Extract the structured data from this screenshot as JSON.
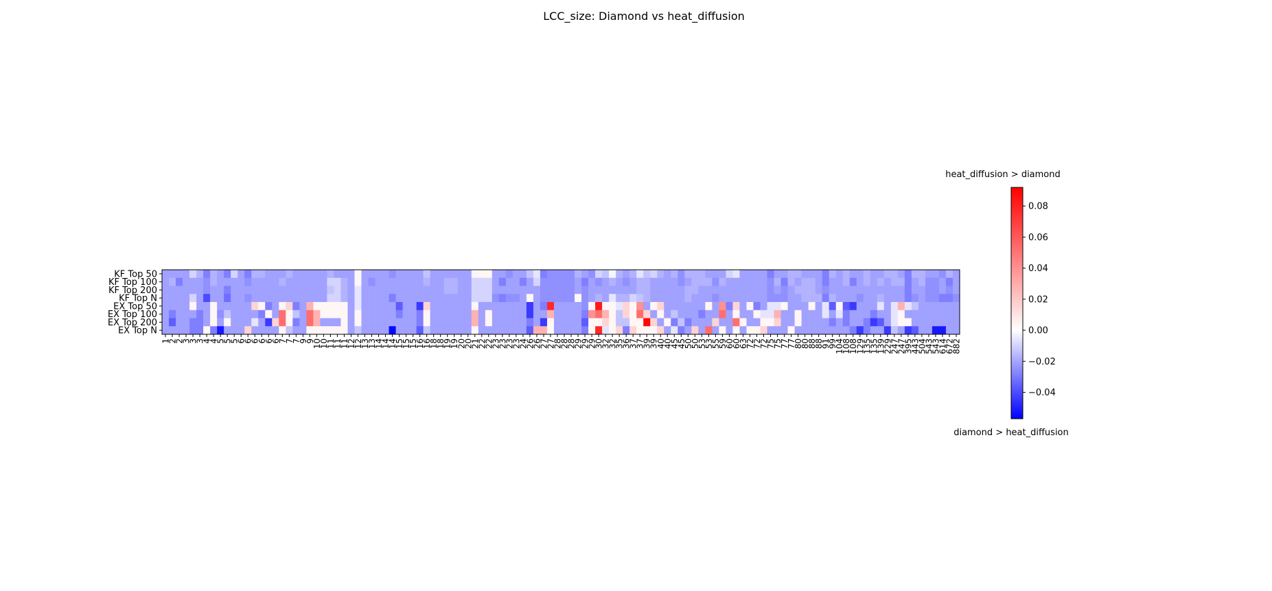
{
  "chart_data": {
    "type": "heatmap",
    "title": "LCC_size: Diamond vs heat_diffusion",
    "rows": [
      "KF Top 50",
      "KF Top 100",
      "KF Top 200",
      "KF Top N",
      "EX Top 50",
      "EX Top 100",
      "EX Top 200",
      "EX Top N"
    ],
    "columns": [
      "1",
      "2",
      "2",
      "3",
      "3",
      "3",
      "4",
      "4",
      "5",
      "5",
      "5",
      "6",
      "6",
      "6",
      "6",
      "6",
      "6",
      "7",
      "7",
      "7",
      "9",
      "9",
      "10",
      "10",
      "11",
      "11",
      "11",
      "12",
      "12",
      "13",
      "13",
      "14",
      "14",
      "14",
      "15",
      "15",
      "15",
      "16",
      "16",
      "18",
      "18",
      "19",
      "19",
      "20",
      "20",
      "21",
      "22",
      "22",
      "23",
      "23",
      "23",
      "23",
      "24",
      "26",
      "26",
      "27",
      "27",
      "28",
      "28",
      "28",
      "29",
      "29",
      "29",
      "30",
      "32",
      "32",
      "35",
      "36",
      "37",
      "37",
      "39",
      "39",
      "40",
      "40",
      "45",
      "45",
      "50",
      "50",
      "53",
      "53",
      "55",
      "59",
      "60",
      "60",
      "63",
      "72",
      "72",
      "72",
      "75",
      "75",
      "77",
      "77",
      "80",
      "80",
      "88",
      "88",
      "91",
      "99",
      "104",
      "108",
      "108",
      "129",
      "135",
      "135",
      "139",
      "229",
      "247",
      "247",
      "395",
      "443",
      "504",
      "543",
      "543",
      "614",
      "672",
      "882"
    ],
    "colorbar": {
      "ticks": [
        "0.08",
        "0.06",
        "0.04",
        "0.02",
        "0.00",
        "−0.02",
        "−0.04"
      ],
      "tick_values": [
        0.08,
        0.06,
        0.04,
        0.02,
        0.0,
        -0.02,
        -0.04
      ],
      "vmin": -0.057,
      "vmax": 0.092,
      "colormap": "bwr",
      "top_label": "heat_diffusion > diamond",
      "bottom_label": "diamond > heat_diffusion"
    },
    "values": [
      [
        -0.01,
        -0.01,
        -0.01,
        -0.01,
        0.005,
        -0.005,
        -0.02,
        -0.005,
        -0.01,
        -0.02,
        0.005,
        -0.01,
        -0.02,
        -0.005,
        -0.005,
        -0.01,
        -0.01,
        -0.01,
        -0.005,
        -0.01,
        -0.01,
        -0.01,
        -0.01,
        -0.01,
        -0.005,
        -0.01,
        -0.01,
        -0.01,
        0.02,
        -0.01,
        -0.01,
        -0.01,
        -0.01,
        -0.015,
        -0.01,
        -0.01,
        -0.01,
        -0.01,
        0.0,
        -0.01,
        -0.01,
        -0.01,
        -0.01,
        -0.01,
        -0.01,
        0.015,
        0.02,
        0.02,
        -0.01,
        -0.01,
        -0.015,
        -0.01,
        -0.01,
        0.0,
        0.01,
        -0.02,
        -0.015,
        -0.015,
        -0.015,
        -0.015,
        -0.005,
        -0.01,
        -0.015,
        0.005,
        0.0,
        0.015,
        -0.005,
        -0.01,
        -0.005,
        0.01,
        0.0,
        0.005,
        -0.005,
        -0.01,
        -0.005,
        -0.015,
        -0.005,
        -0.005,
        -0.005,
        -0.01,
        -0.01,
        -0.01,
        0.005,
        0.01,
        -0.01,
        -0.01,
        -0.01,
        -0.01,
        -0.02,
        -0.01,
        -0.01,
        -0.005,
        -0.005,
        -0.01,
        -0.01,
        -0.01,
        -0.02,
        -0.005,
        -0.01,
        -0.005,
        -0.01,
        -0.01,
        -0.005,
        -0.01,
        -0.01,
        -0.005,
        -0.005,
        -0.01,
        -0.02,
        -0.005,
        -0.005,
        -0.01,
        -0.01,
        -0.015,
        -0.005,
        -0.01
      ],
      [
        -0.01,
        -0.005,
        -0.02,
        -0.01,
        -0.01,
        -0.01,
        -0.015,
        -0.005,
        -0.01,
        -0.01,
        -0.01,
        -0.01,
        -0.015,
        -0.01,
        -0.01,
        -0.01,
        -0.01,
        -0.005,
        -0.01,
        -0.01,
        -0.01,
        -0.01,
        -0.01,
        -0.01,
        0.005,
        0.005,
        -0.005,
        -0.01,
        0.02,
        -0.01,
        -0.015,
        -0.01,
        -0.01,
        -0.01,
        -0.01,
        -0.01,
        -0.01,
        -0.01,
        -0.005,
        -0.01,
        -0.01,
        -0.005,
        -0.005,
        -0.01,
        -0.01,
        0.005,
        0.005,
        0.005,
        -0.01,
        -0.02,
        -0.01,
        -0.01,
        -0.02,
        -0.01,
        0.005,
        -0.015,
        -0.015,
        -0.015,
        -0.015,
        -0.015,
        -0.01,
        -0.02,
        -0.01,
        -0.015,
        -0.01,
        -0.005,
        -0.01,
        -0.015,
        -0.01,
        -0.005,
        -0.005,
        -0.01,
        -0.01,
        -0.01,
        -0.01,
        -0.015,
        -0.01,
        -0.005,
        -0.005,
        -0.005,
        -0.015,
        -0.005,
        -0.01,
        -0.01,
        -0.01,
        -0.01,
        -0.01,
        -0.01,
        -0.015,
        -0.005,
        -0.02,
        -0.005,
        -0.01,
        -0.005,
        -0.005,
        -0.01,
        -0.02,
        -0.01,
        -0.01,
        -0.005,
        -0.02,
        -0.01,
        -0.005,
        -0.01,
        -0.005,
        -0.01,
        -0.005,
        -0.005,
        -0.02,
        -0.01,
        -0.005,
        -0.015,
        -0.015,
        -0.01,
        -0.02,
        -0.01
      ],
      [
        -0.01,
        -0.01,
        -0.01,
        -0.01,
        -0.01,
        -0.01,
        -0.015,
        -0.01,
        -0.01,
        -0.02,
        -0.01,
        -0.01,
        -0.01,
        -0.01,
        -0.01,
        -0.01,
        -0.01,
        -0.01,
        -0.01,
        -0.01,
        -0.01,
        -0.01,
        -0.01,
        -0.01,
        0.0,
        0.005,
        -0.005,
        -0.01,
        0.01,
        -0.01,
        -0.01,
        -0.01,
        -0.01,
        -0.01,
        -0.01,
        -0.01,
        -0.01,
        -0.01,
        -0.01,
        -0.01,
        -0.01,
        -0.005,
        -0.005,
        -0.01,
        -0.01,
        0.005,
        0.005,
        0.005,
        -0.01,
        -0.01,
        -0.01,
        -0.01,
        -0.01,
        -0.01,
        -0.01,
        -0.015,
        -0.015,
        -0.015,
        -0.015,
        -0.015,
        -0.01,
        -0.015,
        -0.01,
        -0.01,
        -0.01,
        -0.01,
        -0.01,
        -0.01,
        -0.01,
        -0.005,
        -0.005,
        -0.01,
        -0.01,
        -0.01,
        -0.01,
        -0.01,
        -0.005,
        -0.005,
        -0.01,
        -0.01,
        -0.01,
        -0.01,
        -0.01,
        -0.01,
        -0.01,
        -0.01,
        -0.01,
        -0.01,
        -0.015,
        -0.01,
        -0.015,
        -0.01,
        -0.005,
        -0.005,
        -0.005,
        -0.01,
        -0.015,
        -0.01,
        -0.01,
        -0.01,
        -0.01,
        -0.01,
        -0.01,
        -0.01,
        -0.01,
        -0.01,
        -0.01,
        -0.01,
        -0.02,
        -0.01,
        -0.01,
        -0.015,
        -0.015,
        -0.01,
        -0.015,
        -0.01
      ],
      [
        -0.01,
        -0.01,
        -0.01,
        -0.01,
        0.005,
        -0.01,
        -0.035,
        -0.01,
        -0.01,
        -0.025,
        -0.01,
        -0.01,
        -0.015,
        -0.01,
        -0.01,
        -0.01,
        -0.01,
        -0.01,
        -0.01,
        -0.01,
        -0.01,
        -0.01,
        -0.01,
        -0.01,
        0.005,
        0.005,
        -0.005,
        -0.01,
        0.01,
        -0.01,
        -0.01,
        -0.01,
        -0.01,
        -0.02,
        -0.01,
        -0.01,
        -0.01,
        -0.01,
        -0.01,
        -0.01,
        -0.01,
        -0.01,
        -0.01,
        -0.01,
        -0.01,
        0.005,
        0.005,
        0.005,
        -0.015,
        -0.02,
        -0.015,
        -0.015,
        -0.01,
        0.02,
        -0.01,
        -0.015,
        -0.015,
        -0.015,
        -0.015,
        -0.015,
        0.02,
        -0.015,
        -0.01,
        -0.005,
        -0.01,
        0.01,
        -0.005,
        -0.005,
        0.005,
        0.0,
        -0.005,
        -0.01,
        -0.01,
        -0.01,
        -0.01,
        -0.01,
        -0.005,
        -0.01,
        -0.01,
        -0.01,
        -0.015,
        -0.01,
        -0.01,
        -0.01,
        -0.01,
        -0.01,
        -0.01,
        -0.01,
        -0.015,
        -0.015,
        -0.015,
        -0.01,
        -0.01,
        -0.005,
        -0.005,
        -0.005,
        -0.02,
        -0.005,
        -0.01,
        -0.01,
        -0.01,
        -0.015,
        -0.01,
        -0.01,
        -0.005,
        -0.01,
        -0.01,
        -0.01,
        -0.02,
        -0.015,
        -0.01,
        -0.015,
        -0.015,
        -0.02,
        -0.02,
        -0.015
      ],
      [
        -0.01,
        -0.01,
        -0.01,
        -0.01,
        0.02,
        -0.01,
        -0.01,
        0.02,
        -0.01,
        -0.01,
        -0.01,
        -0.01,
        -0.01,
        0.03,
        0.02,
        -0.02,
        -0.01,
        0.02,
        0.03,
        -0.02,
        -0.01,
        0.04,
        0.02,
        0.02,
        0.02,
        0.02,
        0.02,
        -0.01,
        0.01,
        -0.01,
        -0.01,
        -0.01,
        -0.01,
        -0.01,
        -0.03,
        -0.01,
        -0.01,
        -0.04,
        0.03,
        -0.01,
        -0.01,
        -0.01,
        -0.01,
        -0.01,
        -0.01,
        0.02,
        -0.01,
        -0.01,
        -0.01,
        -0.01,
        -0.01,
        -0.01,
        -0.01,
        -0.04,
        -0.01,
        -0.02,
        0.08,
        -0.01,
        -0.01,
        -0.01,
        -0.01,
        -0.015,
        0.02,
        0.085,
        0.02,
        0.02,
        0.01,
        0.03,
        0.02,
        0.05,
        -0.01,
        0.02,
        0.03,
        -0.01,
        -0.01,
        -0.01,
        -0.01,
        -0.01,
        -0.01,
        0.02,
        -0.01,
        0.05,
        -0.02,
        0.03,
        -0.01,
        0.02,
        -0.02,
        -0.01,
        0.01,
        0.01,
        0.02,
        -0.01,
        -0.01,
        -0.01,
        0.02,
        -0.01,
        0.01,
        -0.03,
        0.02,
        -0.03,
        -0.04,
        -0.01,
        -0.01,
        -0.01,
        0.01,
        -0.01,
        0.01,
        0.04,
        0.01,
        0.0,
        -0.01,
        -0.01,
        -0.01,
        -0.01,
        -0.01,
        -0.01
      ],
      [
        -0.01,
        -0.02,
        -0.01,
        -0.01,
        -0.01,
        -0.02,
        -0.01,
        0.02,
        -0.015,
        0.0,
        -0.01,
        -0.01,
        -0.01,
        -0.01,
        -0.02,
        0.02,
        -0.01,
        0.06,
        0.02,
        0.0,
        -0.01,
        0.06,
        0.04,
        0.02,
        0.02,
        0.02,
        0.02,
        -0.01,
        0.02,
        -0.01,
        -0.01,
        -0.01,
        -0.01,
        -0.01,
        -0.02,
        -0.01,
        -0.01,
        -0.02,
        0.02,
        -0.01,
        -0.01,
        -0.01,
        -0.01,
        -0.01,
        -0.01,
        0.04,
        -0.01,
        0.02,
        -0.01,
        -0.01,
        -0.01,
        -0.01,
        -0.01,
        -0.04,
        -0.01,
        -0.01,
        0.04,
        -0.01,
        -0.01,
        -0.01,
        -0.01,
        -0.02,
        0.05,
        0.06,
        0.04,
        0.02,
        0.0,
        0.03,
        0.02,
        0.06,
        0.03,
        -0.01,
        0.02,
        -0.01,
        0.0,
        -0.01,
        -0.01,
        -0.01,
        -0.02,
        -0.01,
        -0.01,
        0.06,
        -0.01,
        0.02,
        -0.01,
        -0.01,
        0.02,
        0.01,
        0.01,
        0.04,
        -0.01,
        -0.01,
        0.02,
        -0.01,
        -0.01,
        -0.01,
        0.01,
        -0.01,
        0.01,
        -0.02,
        -0.01,
        -0.01,
        -0.01,
        -0.02,
        -0.01,
        -0.01,
        0.01,
        0.02,
        -0.01,
        -0.01,
        -0.01,
        -0.01,
        -0.01,
        -0.01,
        -0.01,
        -0.01
      ],
      [
        -0.01,
        -0.03,
        -0.01,
        -0.01,
        -0.02,
        -0.02,
        -0.01,
        0.02,
        -0.01,
        0.02,
        -0.01,
        -0.01,
        -0.01,
        0.01,
        -0.01,
        -0.04,
        0.03,
        0.06,
        0.02,
        -0.02,
        -0.01,
        0.06,
        0.04,
        -0.01,
        -0.01,
        -0.01,
        0.02,
        -0.01,
        0.02,
        -0.01,
        -0.01,
        -0.01,
        -0.01,
        -0.01,
        -0.01,
        -0.01,
        -0.01,
        -0.02,
        0.02,
        -0.01,
        -0.01,
        -0.01,
        -0.01,
        -0.01,
        -0.01,
        0.04,
        -0.01,
        0.02,
        -0.01,
        -0.01,
        -0.01,
        -0.01,
        -0.01,
        -0.02,
        -0.01,
        -0.04,
        0.02,
        -0.01,
        -0.01,
        -0.01,
        -0.01,
        -0.03,
        0.02,
        0.02,
        0.03,
        0.02,
        0.0,
        0.0,
        0.02,
        0.02,
        0.09,
        0.03,
        -0.01,
        0.02,
        -0.02,
        0.0,
        -0.02,
        -0.01,
        -0.01,
        -0.01,
        0.03,
        -0.01,
        -0.01,
        0.06,
        0.02,
        -0.01,
        -0.01,
        0.02,
        0.02,
        0.03,
        -0.01,
        -0.01,
        0.02,
        -0.01,
        -0.01,
        -0.01,
        -0.01,
        -0.02,
        -0.01,
        -0.02,
        -0.01,
        -0.01,
        -0.02,
        -0.04,
        -0.03,
        -0.01,
        0.01,
        0.02,
        0.02,
        -0.01,
        -0.01,
        -0.01,
        -0.01,
        -0.01,
        -0.01,
        -0.01
      ],
      [
        -0.01,
        -0.01,
        -0.01,
        -0.01,
        -0.02,
        -0.02,
        0.02,
        -0.02,
        -0.05,
        -0.01,
        -0.01,
        -0.01,
        0.03,
        -0.01,
        -0.01,
        -0.01,
        -0.01,
        0.02,
        0.0,
        -0.01,
        -0.01,
        0.02,
        0.02,
        0.02,
        0.02,
        0.02,
        0.02,
        -0.01,
        0.0,
        -0.01,
        -0.01,
        -0.01,
        -0.01,
        -0.055,
        -0.01,
        -0.01,
        -0.01,
        -0.03,
        0.0,
        -0.01,
        -0.01,
        -0.01,
        -0.01,
        -0.01,
        -0.01,
        0.02,
        -0.01,
        -0.01,
        -0.01,
        -0.01,
        -0.01,
        -0.01,
        -0.01,
        -0.03,
        0.04,
        0.04,
        0.02,
        -0.01,
        -0.01,
        -0.01,
        -0.01,
        -0.02,
        0.02,
        0.08,
        0.01,
        0.02,
        0.03,
        -0.02,
        0.03,
        0.02,
        0.02,
        0.02,
        0.03,
        -0.01,
        0.01,
        -0.02,
        -0.01,
        0.03,
        -0.01,
        0.06,
        -0.01,
        0.02,
        -0.01,
        0.02,
        -0.01,
        0.02,
        0.02,
        0.03,
        -0.01,
        -0.01,
        -0.01,
        0.02,
        -0.01,
        -0.01,
        -0.01,
        -0.01,
        -0.01,
        -0.01,
        -0.01,
        -0.01,
        -0.02,
        -0.04,
        -0.02,
        -0.01,
        -0.01,
        -0.04,
        0.0,
        -0.01,
        -0.04,
        -0.03,
        -0.01,
        -0.01,
        -0.05,
        -0.05,
        -0.01,
        -0.01
      ]
    ]
  }
}
